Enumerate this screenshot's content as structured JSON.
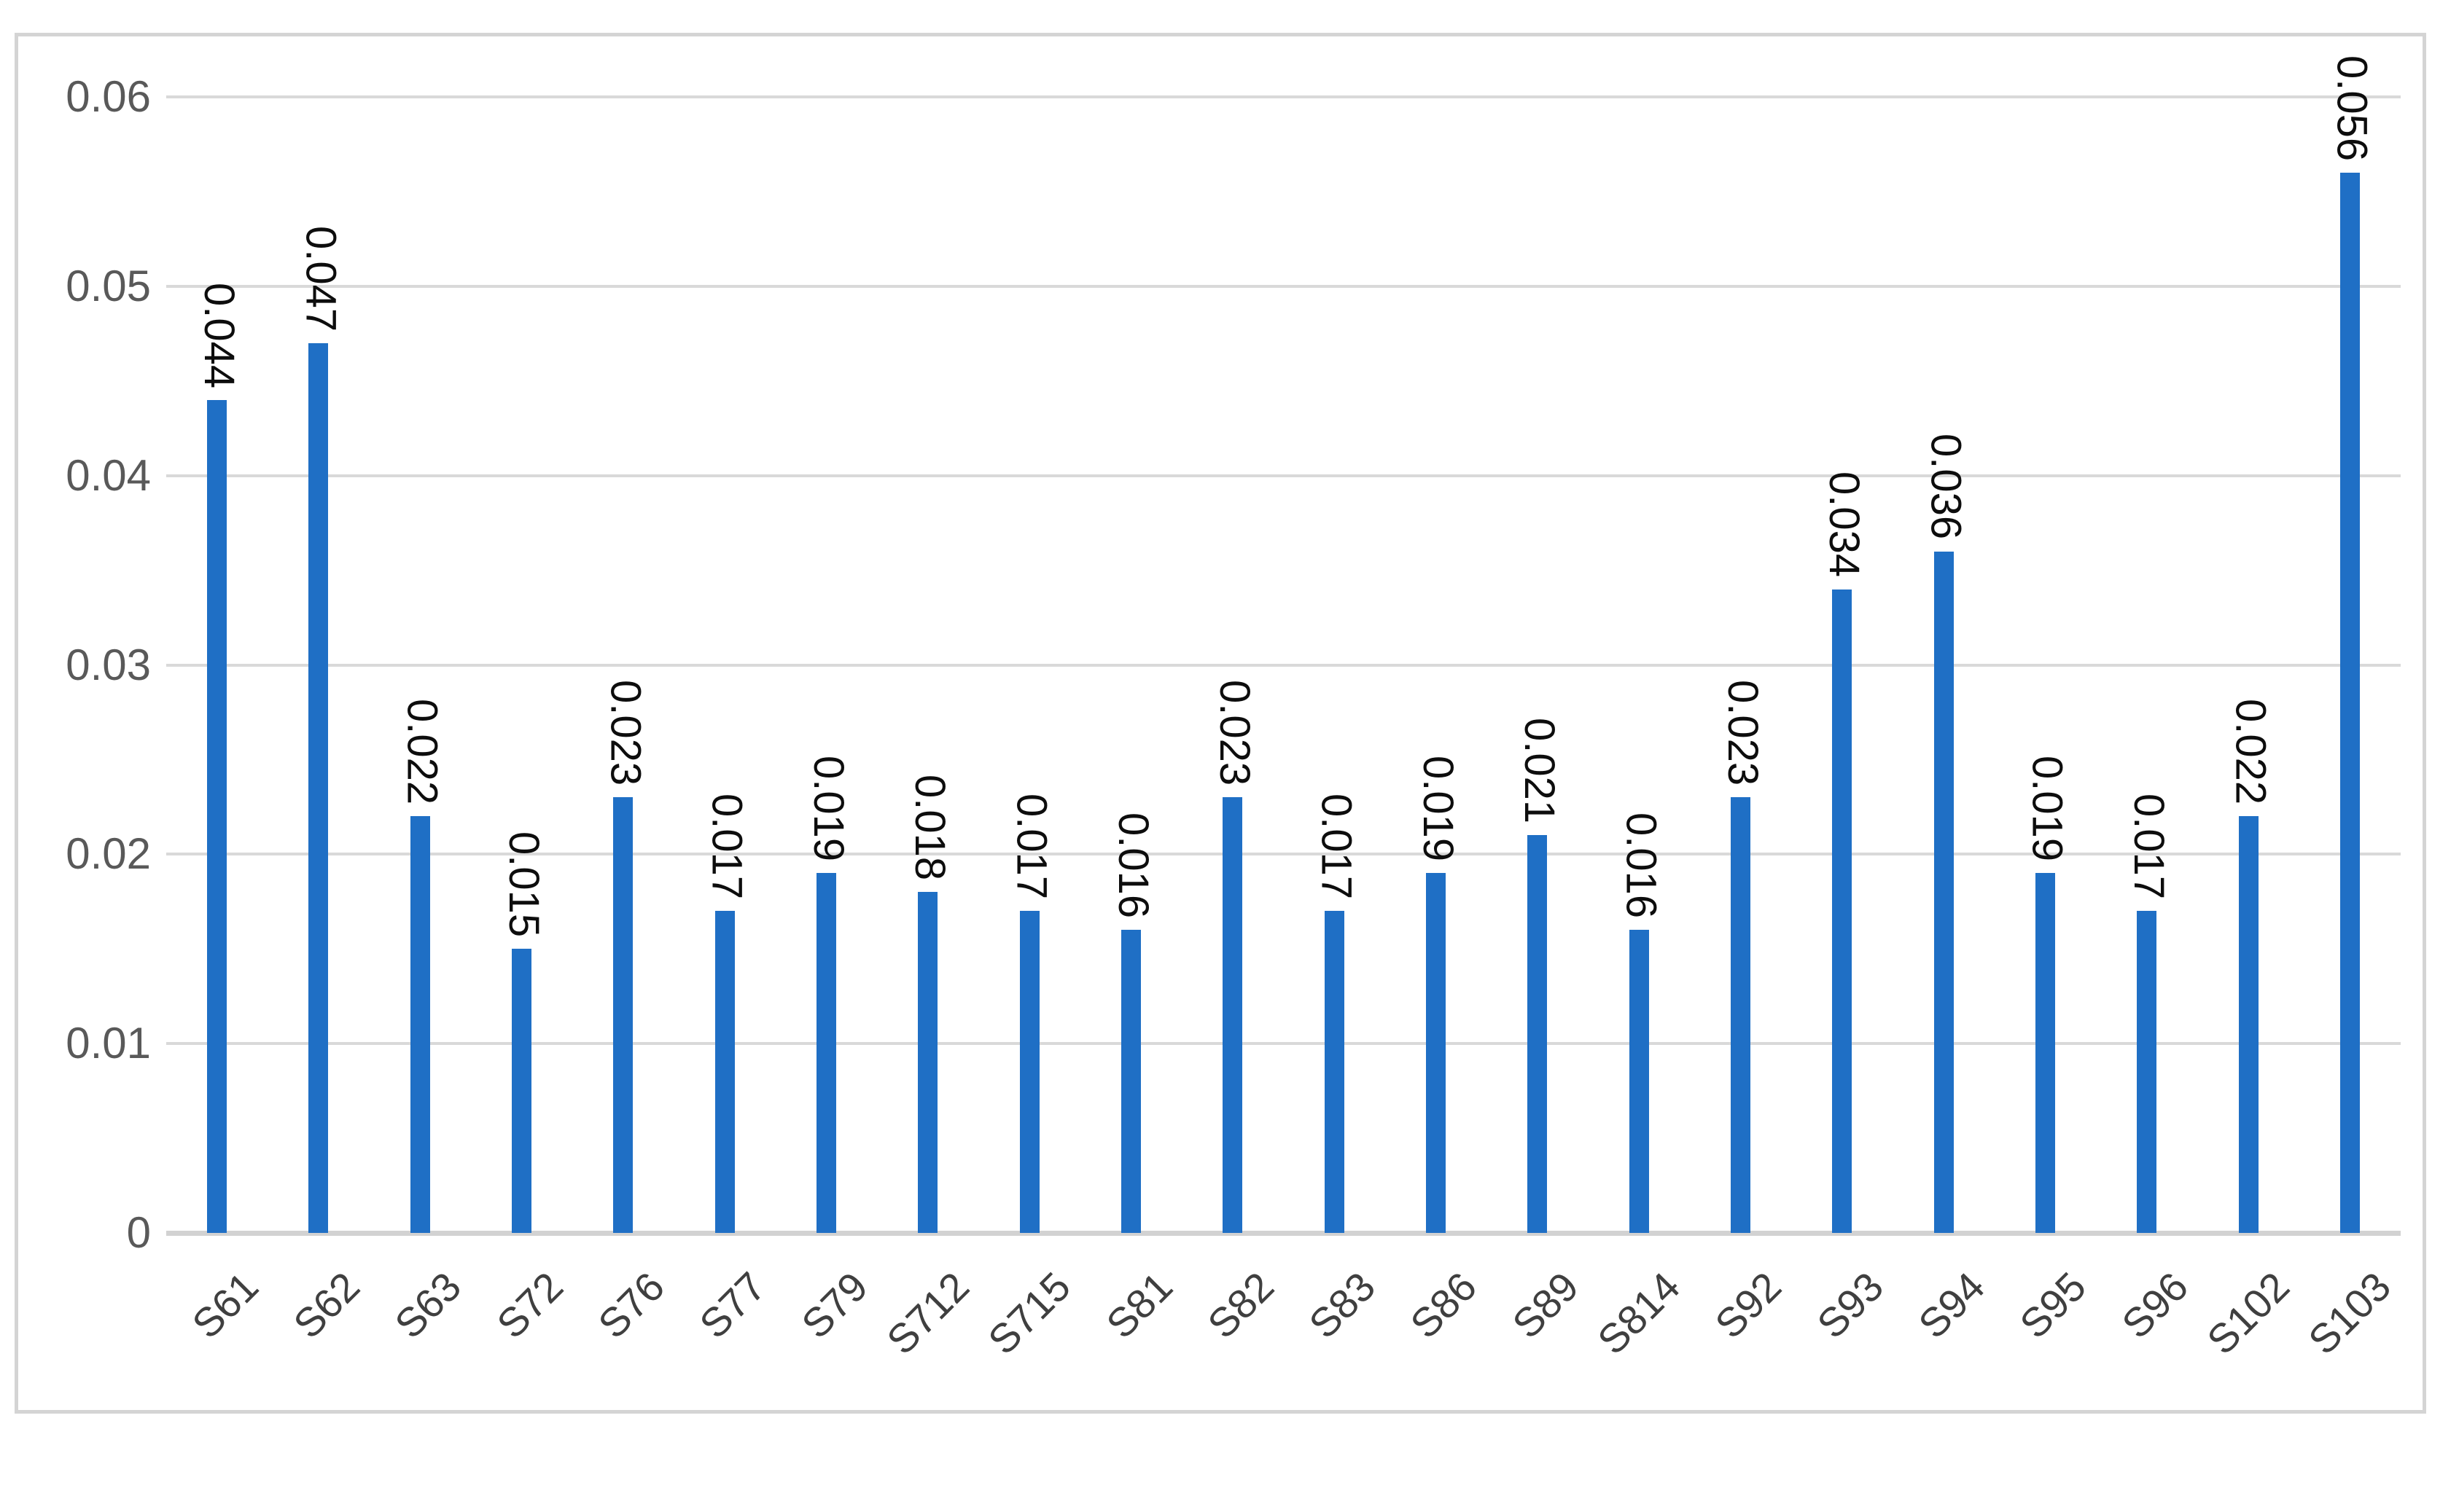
{
  "chart_data": {
    "type": "bar",
    "categories": [
      "S61",
      "S62",
      "S63",
      "S72",
      "S76",
      "S77",
      "S79",
      "S712",
      "S715",
      "S81",
      "S82",
      "S83",
      "S86",
      "S89",
      "S814",
      "S92",
      "S93",
      "S94",
      "S95",
      "S96",
      "S102",
      "S103"
    ],
    "values": [
      0.044,
      0.047,
      0.022,
      0.015,
      0.023,
      0.017,
      0.019,
      0.018,
      0.017,
      0.016,
      0.023,
      0.017,
      0.019,
      0.021,
      0.016,
      0.023,
      0.034,
      0.036,
      0.019,
      0.017,
      0.022,
      0.056
    ],
    "data_labels": [
      "0.044",
      "0.047",
      "0.022",
      "0.015",
      "0.023",
      "0.017",
      "0.019",
      "0.018",
      "0.017",
      "0.016",
      "0.023",
      "0.017",
      "0.019",
      "0.021",
      "0.016",
      "0.023",
      "0.034",
      "0.036",
      "0.019",
      "0.017",
      "0.022",
      "0.056"
    ],
    "title": "",
    "xlabel": "",
    "ylabel": "",
    "ylim": [
      0,
      0.06
    ],
    "ytick_values": [
      0,
      0.01,
      0.02,
      0.03,
      0.04,
      0.05,
      0.06
    ],
    "ytick_labels": [
      "0",
      "0.01",
      "0.02",
      "0.03",
      "0.04",
      "0.05",
      "0.06"
    ],
    "grid": true,
    "legend": false,
    "data_label_rotation_deg": 90,
    "category_label_rotation_deg": -45,
    "colors": {
      "bar": "#1f6fc5",
      "gridline": "#d9d9d9",
      "baseline": "#d2d2d2",
      "frame_border": "#d4d4d4",
      "y_tick_text": "#595959",
      "category_text": "#3f3f3f",
      "data_label_text": "#0d0d0d",
      "background": "#ffffff"
    }
  }
}
